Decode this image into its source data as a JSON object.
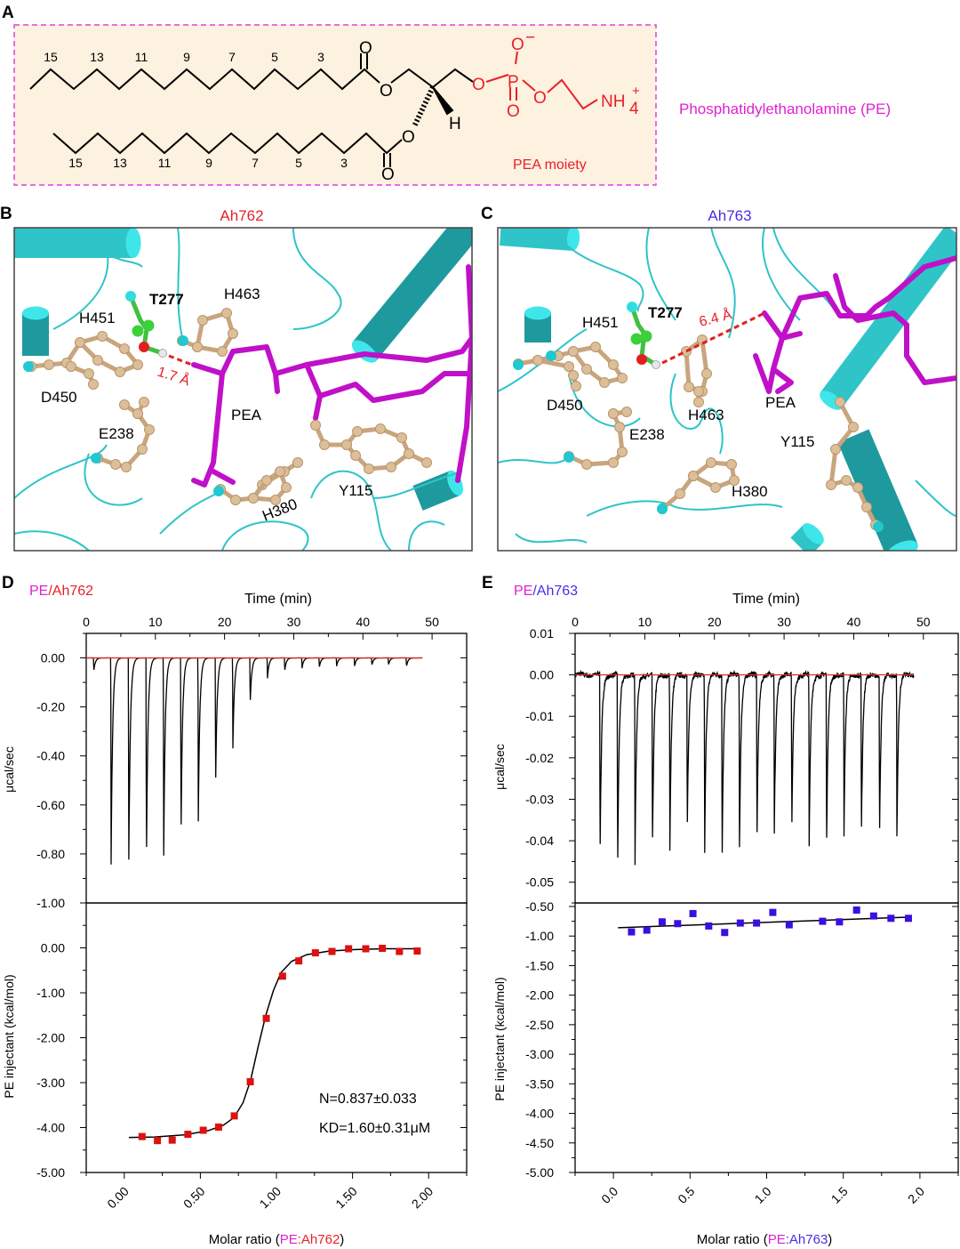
{
  "panel_labels": {
    "a": "A",
    "b": "B",
    "c": "C",
    "d": "D",
    "e": "E"
  },
  "panel_a": {
    "chain_numbers_top": [
      "15",
      "13",
      "11",
      "9",
      "7",
      "5",
      "3"
    ],
    "chain_numbers_bottom": [
      "15",
      "13",
      "11",
      "9",
      "7",
      "5",
      "3"
    ],
    "atoms": {
      "o": "O",
      "p": "P",
      "h": "H",
      "o_minus": "O",
      "minus": "−",
      "nh": "NH",
      "sub4": "4",
      "plus": "+"
    },
    "moiety_label": "PEA moiety",
    "compound_label": "Phosphatidylethanolamine (PE)",
    "colors": {
      "box_fill": "#fdf1df",
      "box_border": "#e040e0",
      "pea": "#e8202a",
      "compound": "#e020d0"
    }
  },
  "panel_b": {
    "title": "Ah762",
    "title_color": "#e8202a",
    "residues": [
      "T277",
      "H463",
      "H451",
      "D450",
      "PEA",
      "E238",
      "Y115",
      "H380"
    ],
    "distance": "1.7 Å"
  },
  "panel_c": {
    "title": "Ah763",
    "title_color": "#4a2ee0",
    "residues": [
      "T277",
      "H451",
      "D450",
      "H463",
      "PEA",
      "E238",
      "Y115",
      "H380"
    ],
    "distance": "6.4 Å"
  },
  "panel_d": {
    "title_pe": "PE",
    "title_rest": "/Ah762",
    "time_label": "Time (min)",
    "top_ylabel": "μcal/sec",
    "bottom_ylabel": "PE injectant (kcal/mol)",
    "xlabel_pre": "Molar ratio (",
    "xlabel_pe": "PE",
    "xlabel_mid": ":Ah762",
    "xlabel_post": ")",
    "annotation_n": "N=0.837±0.033",
    "annotation_kd": "KD=1.60±0.31μM"
  },
  "panel_e": {
    "title_pe": "PE",
    "title_rest": "/Ah763",
    "time_label": "Time (min)",
    "top_ylabel": "μcal/sec",
    "bottom_ylabel": "PE injectant (kcal/mol)",
    "xlabel_pre": "Molar ratio (",
    "xlabel_pe": "PE",
    "xlabel_mid": ":Ah763",
    "xlabel_post": ")"
  },
  "chart_data": [
    {
      "id": "d_raw",
      "type": "line",
      "xlabel": "Time (min)",
      "ylabel": "μcal/sec",
      "xlim": [
        0,
        55
      ],
      "ylim": [
        -1.0,
        0.1
      ],
      "xticks": [
        0,
        10,
        20,
        30,
        40,
        50
      ],
      "xtick_labels": [
        "0",
        "10",
        "20",
        "30",
        "40",
        "50"
      ],
      "yticks": [
        0,
        -0.2,
        -0.4,
        -0.6,
        -0.8,
        -1.0
      ],
      "ytick_labels": [
        "0.00",
        "-0.20",
        "-0.40",
        "-0.60",
        "-0.80",
        "-1.00"
      ],
      "injection_times": [
        1.1,
        3.6,
        6.15,
        8.7,
        11.2,
        13.7,
        16.2,
        18.7,
        21.2,
        23.7,
        26.2,
        28.7,
        31.2,
        33.7,
        36.2,
        38.8,
        41.3,
        43.7,
        46.3
      ],
      "peak_values": [
        -0.053,
        -0.843,
        -0.861,
        -0.845,
        -0.807,
        -0.744,
        -0.667,
        -0.535,
        -0.369,
        -0.188,
        -0.083,
        -0.053,
        -0.042,
        -0.039,
        -0.034,
        -0.033,
        -0.03,
        -0.029,
        -0.035
      ],
      "baseline": 0,
      "trace_color": "#000000",
      "baseline_color": "#e03030"
    },
    {
      "id": "d_fit",
      "type": "scatter",
      "xlabel": "Molar ratio (PE:Ah762)",
      "ylabel": "PE injectant (kcal/mol)",
      "xlim": [
        -0.25,
        2.25
      ],
      "ylim": [
        -5.0,
        1.0
      ],
      "xticks": [
        0,
        0.5,
        1.0,
        1.5,
        2.0
      ],
      "xtick_labels": [
        "0.00",
        "0.50",
        "1.00",
        "1.50",
        "2.00"
      ],
      "yticks": [
        0,
        -1,
        -2,
        -3,
        -4,
        -5
      ],
      "ytick_labels": [
        "0.00",
        "-1.00",
        "-2.00",
        "-3.00",
        "-4.00",
        "-5.00"
      ],
      "x": [
        0.117,
        0.218,
        0.315,
        0.418,
        0.519,
        0.62,
        0.723,
        0.828,
        0.933,
        1.04,
        1.147,
        1.256,
        1.365,
        1.474,
        1.587,
        1.696,
        1.808,
        1.925
      ],
      "y": [
        -4.2,
        -4.29,
        -4.28,
        -4.15,
        -4.06,
        -3.99,
        -3.74,
        -2.98,
        -1.57,
        -0.63,
        -0.29,
        -0.11,
        -0.08,
        -0.02,
        -0.02,
        -0.01,
        -0.08,
        -0.07
      ],
      "fit": [
        [
          0.03,
          -4.22
        ],
        [
          0.2,
          -4.21
        ],
        [
          0.4,
          -4.16
        ],
        [
          0.55,
          -4.07
        ],
        [
          0.65,
          -3.95
        ],
        [
          0.72,
          -3.78
        ],
        [
          0.78,
          -3.45
        ],
        [
          0.83,
          -2.95
        ],
        [
          0.88,
          -2.2
        ],
        [
          0.93,
          -1.5
        ],
        [
          0.98,
          -0.95
        ],
        [
          1.03,
          -0.55
        ],
        [
          1.1,
          -0.3
        ],
        [
          1.2,
          -0.15
        ],
        [
          1.35,
          -0.07
        ],
        [
          1.5,
          -0.04
        ],
        [
          1.7,
          -0.02
        ],
        [
          1.93,
          -0.02
        ]
      ],
      "marker_color": "#dd1111",
      "fit_color": "#000000"
    },
    {
      "id": "e_raw",
      "type": "line",
      "xlabel": "Time (min)",
      "ylabel": "μcal/sec",
      "xlim": [
        0,
        55
      ],
      "ylim": [
        -0.055,
        0.01
      ],
      "xticks": [
        0,
        10,
        20,
        30,
        40,
        50
      ],
      "xtick_labels": [
        "0",
        "10",
        "20",
        "30",
        "40",
        "50"
      ],
      "yticks": [
        0.01,
        0,
        -0.01,
        -0.02,
        -0.03,
        -0.04,
        -0.05
      ],
      "ytick_labels": [
        "0.01",
        "0.00",
        "-0.01",
        "-0.02",
        "-0.03",
        "-0.04",
        "-0.05"
      ],
      "injection_times": [
        3.58,
        6.1,
        8.6,
        11.1,
        13.6,
        16.1,
        18.6,
        21.1,
        23.6,
        26.1,
        28.6,
        31.1,
        33.6,
        36.1,
        38.6,
        41.1,
        43.7,
        46.2
      ],
      "peak_values": [
        -0.0451,
        -0.0484,
        -0.0455,
        -0.0436,
        -0.0426,
        -0.0393,
        -0.0423,
        -0.0462,
        -0.0413,
        -0.0413,
        -0.0386,
        -0.0392,
        -0.042,
        -0.0427,
        -0.0393,
        -0.0398,
        -0.0407,
        -0.0389
      ],
      "baseline": 0,
      "trace_color": "#000000",
      "baseline_color": "#e03030"
    },
    {
      "id": "e_fit",
      "type": "scatter",
      "xlabel": "Molar ratio (PE:Ah763)",
      "ylabel": "PE injectant (kcal/mol)",
      "xlim": [
        -0.25,
        2.25
      ],
      "ylim": [
        -5.0,
        -0.44
      ],
      "xticks": [
        0,
        0.5,
        1.0,
        1.5,
        2.0
      ],
      "xtick_labels": [
        "0.0",
        "0.5",
        "1.0",
        "1.5",
        "2.0"
      ],
      "yticks": [
        -0.5,
        -1.0,
        -1.5,
        -2.0,
        -2.5,
        -3.0,
        -3.5,
        -4.0,
        -4.5,
        -5.0
      ],
      "ytick_labels": [
        "-0.50",
        "-1.00",
        "-1.50",
        "-2.00",
        "-2.50",
        "-3.00",
        "-3.50",
        "-4.00",
        "-4.50",
        "-5.00"
      ],
      "x": [
        0.118,
        0.218,
        0.318,
        0.419,
        0.519,
        0.622,
        0.726,
        0.828,
        0.934,
        1.04,
        1.147,
        1.365,
        1.475,
        1.587,
        1.698,
        1.811,
        1.925
      ],
      "y": [
        -0.93,
        -0.9,
        -0.76,
        -0.79,
        -0.62,
        -0.83,
        -0.94,
        -0.78,
        -0.78,
        -0.6,
        -0.81,
        -0.75,
        -0.76,
        -0.56,
        -0.66,
        -0.7,
        -0.7
      ],
      "fit": [
        [
          0.03,
          -0.86
        ],
        [
          1.93,
          -0.68
        ]
      ],
      "marker_color": "#3a10e0",
      "fit_color": "#000000"
    }
  ]
}
